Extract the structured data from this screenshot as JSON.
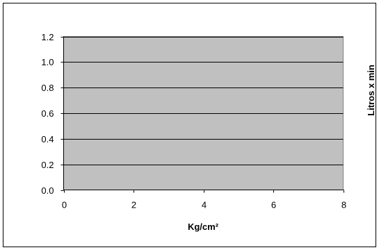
{
  "chart_data": {
    "type": "line",
    "title": "",
    "xlabel": "Kg/cm²",
    "ylabel": "Litros x min",
    "xlim": [
      0,
      8
    ],
    "ylim": [
      0,
      1.2
    ],
    "x_ticks": [
      "0",
      "2",
      "4",
      "6",
      "8"
    ],
    "y_ticks": [
      "0.0",
      "0.2",
      "0.4",
      "0.6",
      "0.8",
      "1.0",
      "1.2"
    ],
    "series": [],
    "grid": true,
    "plot_background": "#c0c0c0",
    "gridline_color": "#000000",
    "frame_color": "#000000"
  }
}
